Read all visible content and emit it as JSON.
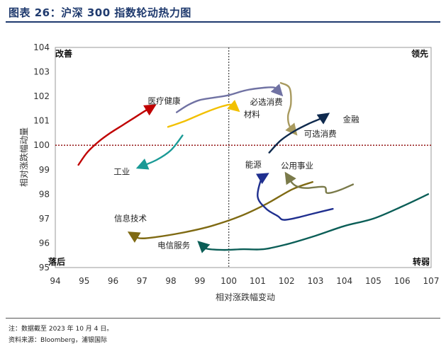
{
  "figure_title": "图表 26：沪深 300 指数轮动热力图",
  "footnotes": {
    "note": "注：数据截至 2023 年 10 月 4 日。",
    "source": "资料来源：Bloomberg，浦银国际"
  },
  "chart_data": {
    "type": "line",
    "title": "",
    "xlabel": "相对涨跌幅变动",
    "ylabel": "相对涨跌幅动量",
    "xlim": [
      94,
      107
    ],
    "ylim": [
      95,
      104
    ],
    "xticks": [
      94,
      95,
      96,
      97,
      98,
      99,
      100,
      101,
      102,
      103,
      104,
      105,
      106,
      107
    ],
    "yticks": [
      95,
      96,
      97,
      98,
      99,
      100,
      101,
      102,
      103,
      104
    ],
    "grid": false,
    "reference_lines": [
      {
        "axis": "x",
        "value": 100,
        "style": "dotted",
        "color": "#555555"
      },
      {
        "axis": "y",
        "value": 100,
        "style": "dotted",
        "color": "#8b0000"
      }
    ],
    "quadrants": {
      "top_left": "改善",
      "top_right": "领先",
      "bottom_left": "落后",
      "bottom_right": "转弱"
    },
    "series": [
      {
        "name": "医疗健康",
        "color": "#c00000",
        "points": [
          [
            94.8,
            99.2
          ],
          [
            95.1,
            99.7
          ],
          [
            95.5,
            100.15
          ],
          [
            95.9,
            100.5
          ],
          [
            96.3,
            100.8
          ],
          [
            96.7,
            101.1
          ],
          [
            97.1,
            101.4
          ],
          [
            97.4,
            101.6
          ]
        ]
      },
      {
        "name": "工业",
        "color": "#1a9a96",
        "points": [
          [
            98.4,
            100.4
          ],
          [
            98.0,
            99.8
          ],
          [
            97.5,
            99.4
          ],
          [
            96.9,
            99.1
          ]
        ]
      },
      {
        "name": "信息技术",
        "color": "#7f6a13",
        "points": [
          [
            102.9,
            98.5
          ],
          [
            102.2,
            98.2
          ],
          [
            101.3,
            97.6
          ],
          [
            100.4,
            97.1
          ],
          [
            99.4,
            96.7
          ],
          [
            98.5,
            96.45
          ],
          [
            97.5,
            96.25
          ],
          [
            96.9,
            96.2
          ],
          [
            96.6,
            96.4
          ]
        ]
      },
      {
        "name": "电信服务",
        "color": "#0b5e57",
        "points": [
          [
            106.9,
            98.0
          ],
          [
            106.0,
            97.5
          ],
          [
            105.0,
            97.0
          ],
          [
            104.0,
            96.7
          ],
          [
            103.0,
            96.3
          ],
          [
            102.0,
            95.95
          ],
          [
            101.2,
            95.75
          ],
          [
            100.5,
            95.75
          ],
          [
            99.8,
            95.72
          ],
          [
            99.2,
            95.78
          ],
          [
            99.0,
            96.0
          ]
        ]
      },
      {
        "name": "材料",
        "color": "#f2c000",
        "points": [
          [
            97.9,
            100.75
          ],
          [
            98.5,
            101.0
          ],
          [
            99.2,
            101.35
          ],
          [
            99.8,
            101.6
          ],
          [
            100.1,
            101.65
          ],
          [
            100.3,
            101.45
          ]
        ]
      },
      {
        "name": "必选消费",
        "color": "#7072a3",
        "points": [
          [
            98.2,
            101.35
          ],
          [
            98.6,
            101.65
          ],
          [
            99.0,
            101.85
          ],
          [
            99.5,
            101.95
          ],
          [
            100.0,
            102.05
          ],
          [
            100.6,
            102.25
          ],
          [
            101.2,
            102.35
          ],
          [
            101.6,
            102.35
          ],
          [
            101.8,
            102.1
          ]
        ]
      },
      {
        "name": "可选消费",
        "color": "#a89a5f",
        "points": [
          [
            101.8,
            102.55
          ],
          [
            102.1,
            102.35
          ],
          [
            102.15,
            101.7
          ],
          [
            102.05,
            101.2
          ],
          [
            102.1,
            100.8
          ],
          [
            102.3,
            100.5
          ]
        ]
      },
      {
        "name": "金融",
        "color": "#0f2a4e",
        "points": [
          [
            101.4,
            99.7
          ],
          [
            101.8,
            100.2
          ],
          [
            102.3,
            100.6
          ],
          [
            102.8,
            100.9
          ],
          [
            103.2,
            101.1
          ],
          [
            103.4,
            101.25
          ]
        ]
      },
      {
        "name": "能源",
        "color": "#1f2f8f",
        "points": [
          [
            103.6,
            97.4
          ],
          [
            102.9,
            97.2
          ],
          [
            102.4,
            97.05
          ],
          [
            101.9,
            96.95
          ],
          [
            101.7,
            97.1
          ],
          [
            101.3,
            97.4
          ],
          [
            101.0,
            97.9
          ],
          [
            101.15,
            98.7
          ],
          [
            101.3,
            98.8
          ]
        ]
      },
      {
        "name": "公用事业",
        "color": "#7a7a4a",
        "points": [
          [
            104.3,
            98.4
          ],
          [
            103.8,
            98.15
          ],
          [
            103.4,
            98.05
          ],
          [
            103.3,
            98.3
          ],
          [
            102.7,
            98.25
          ],
          [
            102.4,
            98.3
          ],
          [
            102.2,
            98.45
          ],
          [
            102.0,
            98.8
          ]
        ]
      }
    ]
  }
}
